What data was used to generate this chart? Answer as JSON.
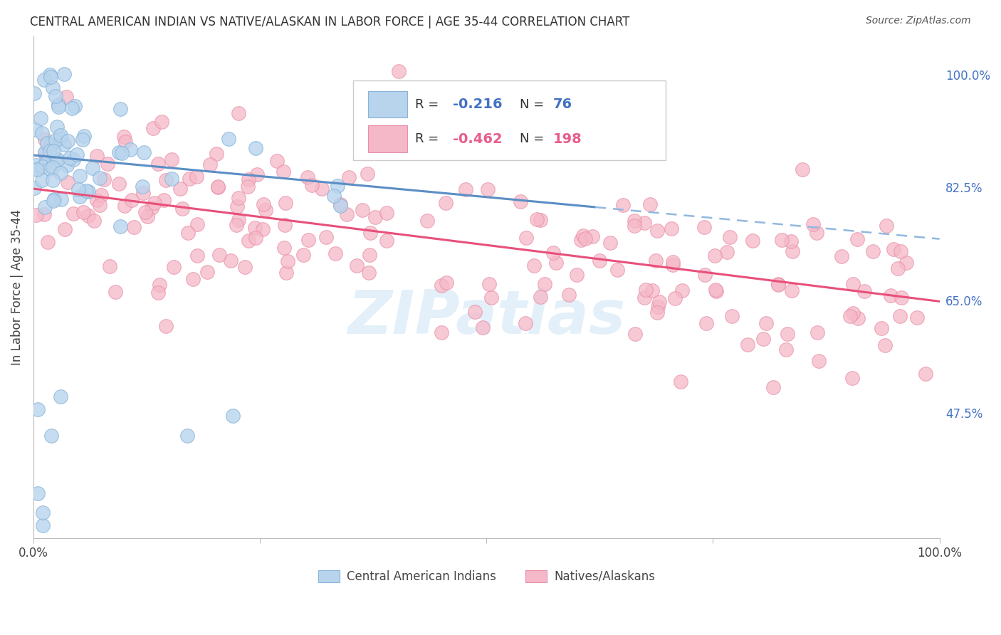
{
  "title": "CENTRAL AMERICAN INDIAN VS NATIVE/ALASKAN IN LABOR FORCE | AGE 35-44 CORRELATION CHART",
  "source": "Source: ZipAtlas.com",
  "ylabel": "In Labor Force | Age 35-44",
  "xlim": [
    0.0,
    1.0
  ],
  "ylim": [
    0.28,
    1.06
  ],
  "yticks": [
    0.475,
    0.65,
    0.825,
    1.0
  ],
  "ytick_labels": [
    "47.5%",
    "65.0%",
    "82.5%",
    "100.0%"
  ],
  "legend_label1": "Central American Indians",
  "legend_label2": "Natives/Alaskans",
  "R1": "-0.216",
  "N1": "76",
  "R2": "-0.462",
  "N2": "198",
  "color_blue_fill": "#b8d4ed",
  "color_blue_edge": "#8ab4d8",
  "color_pink_fill": "#f5b8c8",
  "color_pink_edge": "#e890a8",
  "color_line_blue_solid": "#5b8ec4",
  "color_line_blue_dash": "#90b8e0",
  "color_line_pink": "#e8507a",
  "watermark": "ZIPatlas",
  "title_color": "#333333",
  "source_color": "#555555",
  "ytick_color": "#4472c4",
  "grid_color": "#cccccc",
  "blue_intercept": 0.875,
  "blue_slope": -0.13,
  "pink_intercept": 0.823,
  "pink_slope": -0.175,
  "blue_line_xstart": 0.0,
  "blue_line_xend_solid": 0.62,
  "blue_line_xend_dash": 1.0,
  "pink_line_xstart": 0.0,
  "pink_line_xend": 1.0
}
